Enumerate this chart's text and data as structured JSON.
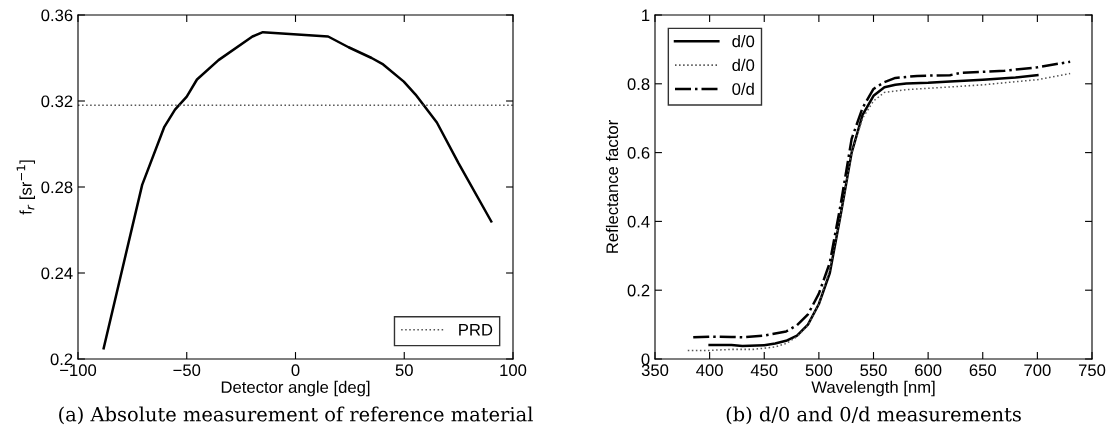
{
  "chart_data": [
    {
      "type": "line",
      "xlabel": "Detector angle [deg]",
      "ylabel": "f$_{r}$ [sr$^{−1}$]",
      "xlim": [
        -100,
        100
      ],
      "xticks": [
        {
          "value": -100,
          "label": "−100"
        },
        {
          "value": -50,
          "label": "−50"
        },
        0,
        50,
        100
      ],
      "ylim": [
        0.2,
        0.36
      ],
      "yticks": [
        0.2,
        0.24,
        0.28,
        0.32,
        0.36
      ],
      "grid": false,
      "legend": "bottom right",
      "x": [
        -88.2,
        -70.5,
        -60.3,
        -55.4,
        -50,
        -45.3,
        -35.4,
        -19.8,
        -15,
        15,
        24.4,
        35,
        40.3,
        49.8,
        55.2,
        65,
        75,
        90
      ],
      "series": [
        {
          "color": "#000000",
          "line_style": "solid",
          "values": [
            0.205,
            0.281,
            0.308,
            0.316,
            0.322,
            0.33,
            0.339,
            0.35,
            0.352,
            0.35,
            0.345,
            0.34,
            0.337,
            0.329,
            0.323,
            0.31,
            0.291,
            0.264
          ]
        }
      ],
      "ref_lines": [
        {
          "axis": "y",
          "value": 0.318,
          "label": "PRD",
          "color": "#555555",
          "line_style": "dotted"
        }
      ],
      "annotations": [
        "(a) Absolute measurement of reference material"
      ]
    },
    {
      "type": "line",
      "xlabel": "Wavelength [nm]",
      "ylabel": "Reflectance factor",
      "xlim": [
        350,
        750
      ],
      "xticks": [
        350,
        400,
        450,
        500,
        550,
        600,
        650,
        700,
        750
      ],
      "ylim": [
        0,
        1
      ],
      "yticks": [
        0,
        0.2,
        0.4,
        0.6,
        0.8,
        1
      ],
      "grid": false,
      "legend": "top left",
      "series": [
        {
          "name": "d/0",
          "color": "#000000",
          "line_style": "solid",
          "x": [
            400,
            420,
            430,
            450,
            460,
            470,
            480,
            490,
            500,
            510,
            520,
            530,
            540,
            550,
            560,
            570,
            580,
            600,
            620,
            650,
            680,
            700
          ],
          "values": [
            0.041,
            0.041,
            0.038,
            0.04,
            0.045,
            0.053,
            0.068,
            0.1,
            0.16,
            0.25,
            0.42,
            0.6,
            0.71,
            0.765,
            0.79,
            0.797,
            0.801,
            0.803,
            0.807,
            0.812,
            0.818,
            0.825
          ]
        },
        {
          "name": "d/0",
          "color": "#555555",
          "line_style": "dotted",
          "x": [
            380,
            400,
            420,
            440,
            460,
            470,
            480,
            490,
            500,
            510,
            520,
            530,
            540,
            550,
            560,
            580,
            600,
            650,
            700,
            730
          ],
          "values": [
            0.025,
            0.025,
            0.028,
            0.028,
            0.035,
            0.045,
            0.065,
            0.098,
            0.16,
            0.26,
            0.42,
            0.6,
            0.7,
            0.75,
            0.775,
            0.783,
            0.787,
            0.797,
            0.812,
            0.83
          ]
        },
        {
          "name": "0/d",
          "color": "#000000",
          "line_style": "dashdot",
          "x": [
            385,
            400,
            420,
            430,
            450,
            470,
            480,
            490,
            500,
            510,
            520,
            530,
            540,
            550,
            560,
            570,
            590,
            620,
            630,
            650,
            670,
            700,
            730
          ],
          "values": [
            0.063,
            0.065,
            0.064,
            0.063,
            0.068,
            0.08,
            0.098,
            0.13,
            0.19,
            0.28,
            0.45,
            0.64,
            0.73,
            0.785,
            0.805,
            0.817,
            0.823,
            0.825,
            0.832,
            0.835,
            0.838,
            0.848,
            0.864
          ]
        }
      ],
      "annotations": [
        "(b) d/0 and 0/d measurements"
      ]
    }
  ]
}
